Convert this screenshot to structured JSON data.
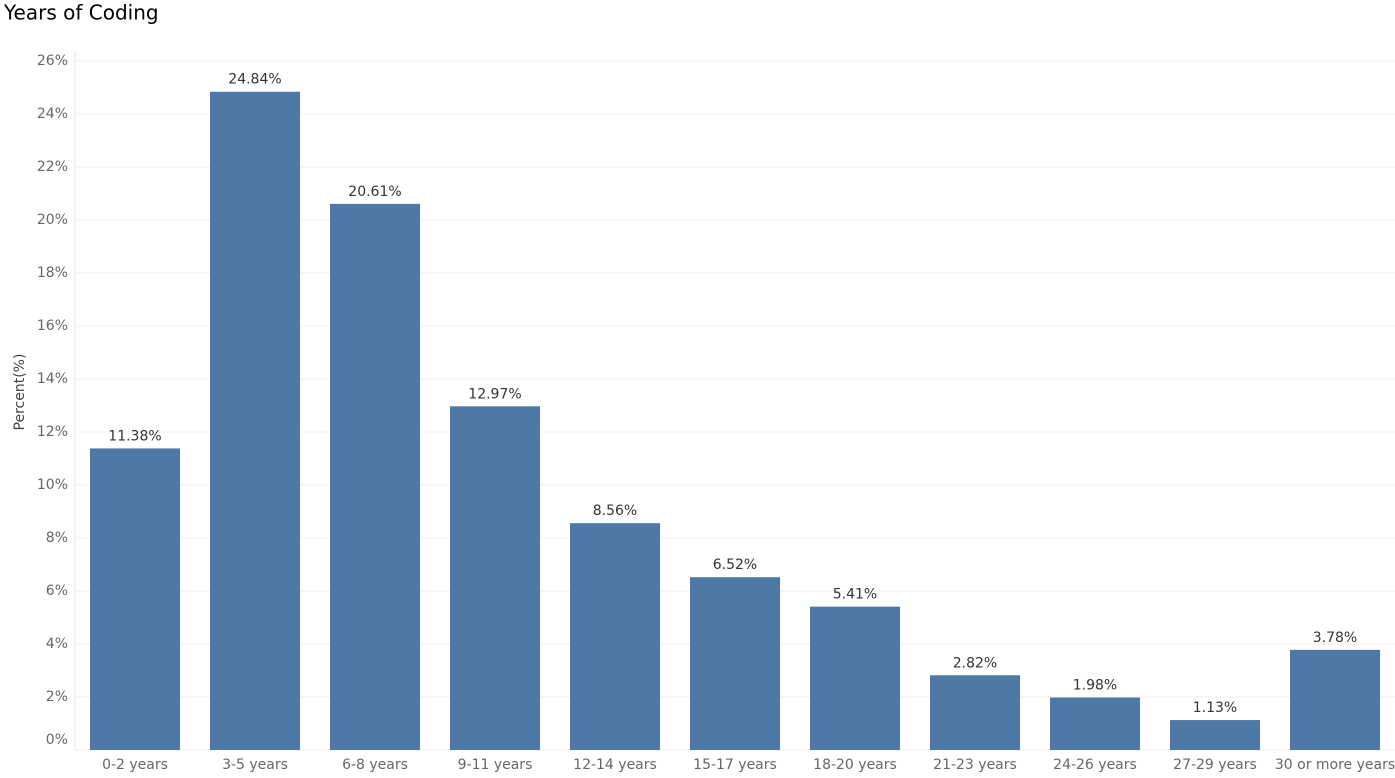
{
  "chart_data": {
    "type": "bar",
    "title": "Years of Coding",
    "y_label": "Percent(%)",
    "categories": [
      "0-2 years",
      "3-5 years",
      "6-8 years",
      "9-11 years",
      "12-14 years",
      "15-17 years",
      "18-20 years",
      "21-23 years",
      "24-26 years",
      "27-29 years",
      "30 or more years"
    ],
    "values": [
      11.38,
      24.84,
      20.61,
      12.97,
      8.56,
      6.52,
      5.41,
      2.82,
      1.98,
      1.13,
      3.78
    ],
    "value_labels": [
      "11.38%",
      "24.84%",
      "20.61%",
      "12.97%",
      "8.56%",
      "6.52%",
      "5.41%",
      "2.82%",
      "1.98%",
      "1.13%",
      "3.78%"
    ],
    "color": "#4e79a7",
    "ylim": [
      0,
      26
    ],
    "yticks": [
      {
        "value": 0,
        "label": "0%"
      },
      {
        "value": 2,
        "label": "2%"
      },
      {
        "value": 4,
        "label": "4%"
      },
      {
        "value": 6,
        "label": "6%"
      },
      {
        "value": 8,
        "label": "8%"
      },
      {
        "value": 10,
        "label": "10%"
      },
      {
        "value": 12,
        "label": "12%"
      },
      {
        "value": 14,
        "label": "14%"
      },
      {
        "value": 16,
        "label": "16%"
      },
      {
        "value": 18,
        "label": "18%"
      },
      {
        "value": 20,
        "label": "20%"
      },
      {
        "value": 22,
        "label": "22%"
      },
      {
        "value": 24,
        "label": "24%"
      },
      {
        "value": 26,
        "label": "26%"
      }
    ],
    "grid": true
  }
}
